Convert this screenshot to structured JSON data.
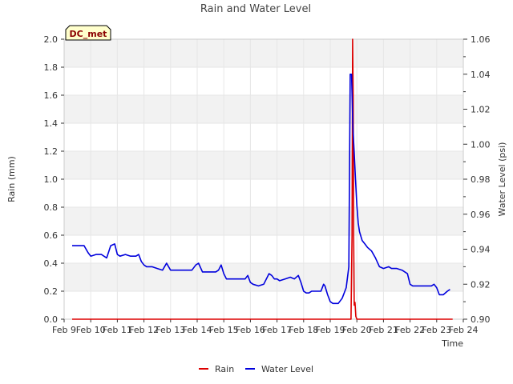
{
  "chart_data": {
    "type": "line",
    "title": "Rain and Water Level",
    "xlabel": "Time",
    "ylabel": "Rain (mm)",
    "y2label": "Water Level (psi)",
    "site_label": "DC_met",
    "x_tick_labels": [
      "Feb 9",
      "Feb 10",
      "Feb 11",
      "Feb 12",
      "Feb 13",
      "Feb 14",
      "Feb 15",
      "Feb 16",
      "Feb 17",
      "Feb 18",
      "Feb 19",
      "Feb 20",
      "Feb 21",
      "Feb 22",
      "Feb 23",
      "Feb 24"
    ],
    "xlim": [
      0,
      15
    ],
    "ylim": [
      0,
      2.0
    ],
    "y_ticks": [
      "0.0",
      "0.2",
      "0.4",
      "0.6",
      "0.8",
      "1.0",
      "1.2",
      "1.4",
      "1.6",
      "1.8",
      "2.0"
    ],
    "y2lim": [
      0.9,
      1.06
    ],
    "y2_ticks": [
      "0.90",
      "0.92",
      "0.94",
      "0.96",
      "0.98",
      "1.00",
      "1.02",
      "1.04",
      "1.06"
    ],
    "grid": true,
    "legend_position": "bottom-center",
    "series": [
      {
        "name": "Rain",
        "axis": "left",
        "color": "#dd0000",
        "x": [
          0.3,
          10.78,
          10.82,
          10.84,
          10.86,
          10.88,
          10.9,
          10.93,
          10.96,
          11.0,
          11.05,
          14.6
        ],
        "y": [
          0,
          0,
          0.6,
          2.0,
          1.6,
          0.6,
          0.1,
          0.12,
          0.02,
          0,
          0,
          0
        ]
      },
      {
        "name": "Water Level",
        "axis": "right",
        "color": "#0000dd",
        "x": [
          0.3,
          0.55,
          0.75,
          0.9,
          1.0,
          1.2,
          1.4,
          1.6,
          1.75,
          1.9,
          2.0,
          2.1,
          2.3,
          2.5,
          2.7,
          2.8,
          2.9,
          3.0,
          3.1,
          3.3,
          3.5,
          3.7,
          3.85,
          4.0,
          4.1,
          4.3,
          4.6,
          4.8,
          4.95,
          5.05,
          5.2,
          5.4,
          5.7,
          5.8,
          5.9,
          6.0,
          6.1,
          6.3,
          6.6,
          6.8,
          6.9,
          7.0,
          7.1,
          7.3,
          7.5,
          7.7,
          7.8,
          7.9,
          8.0,
          8.1,
          8.3,
          8.5,
          8.65,
          8.8,
          8.9,
          9.0,
          9.1,
          9.2,
          9.3,
          9.5,
          9.65,
          9.75,
          9.8,
          9.9,
          10.0,
          10.1,
          10.2,
          10.3,
          10.45,
          10.6,
          10.7,
          10.75,
          10.8,
          10.85,
          10.9,
          10.95,
          11.0,
          11.05,
          11.1,
          11.2,
          11.3,
          11.4,
          11.55,
          11.7,
          11.85,
          12.0,
          12.2,
          12.3,
          12.5,
          12.7,
          12.9,
          13.0,
          13.1,
          13.3,
          13.5,
          13.7,
          13.8,
          13.9,
          14.0,
          14.1,
          14.25,
          14.4,
          14.5
        ],
        "y": [
          0.942,
          0.942,
          0.942,
          0.938,
          0.936,
          0.937,
          0.937,
          0.935,
          0.942,
          0.943,
          0.937,
          0.936,
          0.937,
          0.936,
          0.936,
          0.937,
          0.933,
          0.931,
          0.93,
          0.93,
          0.929,
          0.928,
          0.932,
          0.928,
          0.928,
          0.928,
          0.928,
          0.928,
          0.931,
          0.932,
          0.927,
          0.927,
          0.927,
          0.928,
          0.931,
          0.926,
          0.923,
          0.923,
          0.923,
          0.923,
          0.925,
          0.921,
          0.92,
          0.919,
          0.92,
          0.926,
          0.925,
          0.923,
          0.923,
          0.922,
          0.923,
          0.924,
          0.923,
          0.925,
          0.921,
          0.916,
          0.915,
          0.915,
          0.916,
          0.916,
          0.916,
          0.92,
          0.919,
          0.914,
          0.91,
          0.909,
          0.909,
          0.909,
          0.912,
          0.918,
          0.93,
          1.04,
          1.04,
          1.01,
          0.995,
          0.98,
          0.965,
          0.955,
          0.95,
          0.945,
          0.943,
          0.941,
          0.939,
          0.935,
          0.93,
          0.929,
          0.93,
          0.929,
          0.929,
          0.928,
          0.926,
          0.92,
          0.919,
          0.919,
          0.919,
          0.919,
          0.919,
          0.92,
          0.918,
          0.914,
          0.914,
          0.916,
          0.917
        ]
      }
    ]
  }
}
